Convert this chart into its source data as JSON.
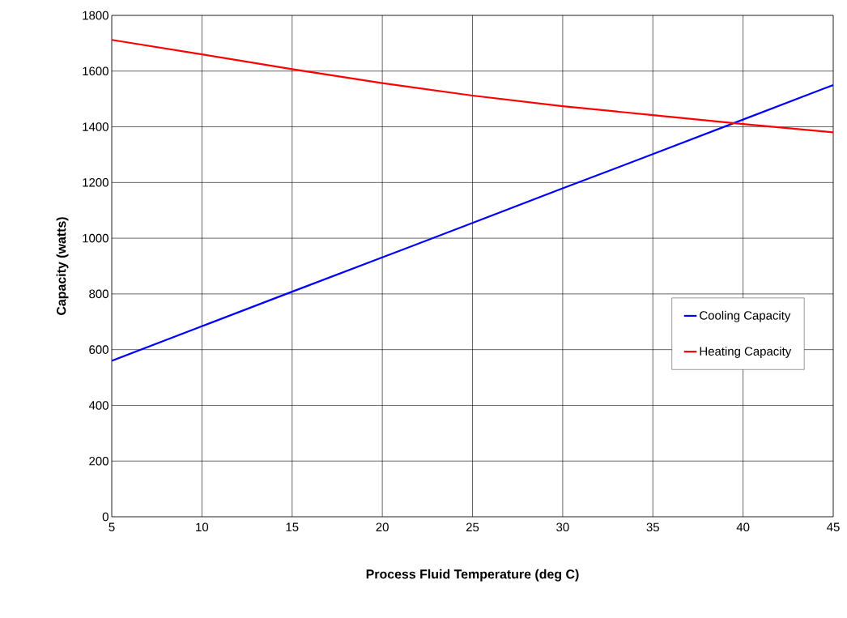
{
  "chart_data": {
    "type": "line",
    "xlabel": "Process Fluid Temperature (deg C)",
    "ylabel": "Capacity (watts)",
    "x": [
      5,
      10,
      15,
      20,
      25,
      30,
      35,
      40,
      45
    ],
    "series": [
      {
        "name": "Cooling Capacity",
        "color": "#0000ff",
        "values": [
          560,
          684,
          808,
          931,
          1055,
          1179,
          1302,
          1426,
          1550
        ]
      },
      {
        "name": "Heating Capacity",
        "color": "#ff0000",
        "values": [
          1712,
          1660,
          1607,
          1557,
          1512,
          1474,
          1442,
          1410,
          1380
        ]
      }
    ],
    "xlim": [
      5,
      45
    ],
    "ylim": [
      0,
      1800
    ],
    "xticks": [
      5,
      10,
      15,
      20,
      25,
      30,
      35,
      40,
      45
    ],
    "yticks": [
      0,
      200,
      400,
      600,
      800,
      1000,
      1200,
      1400,
      1600,
      1800
    ],
    "grid": true,
    "legend": "right",
    "marker": "none",
    "line_style": "solid"
  }
}
